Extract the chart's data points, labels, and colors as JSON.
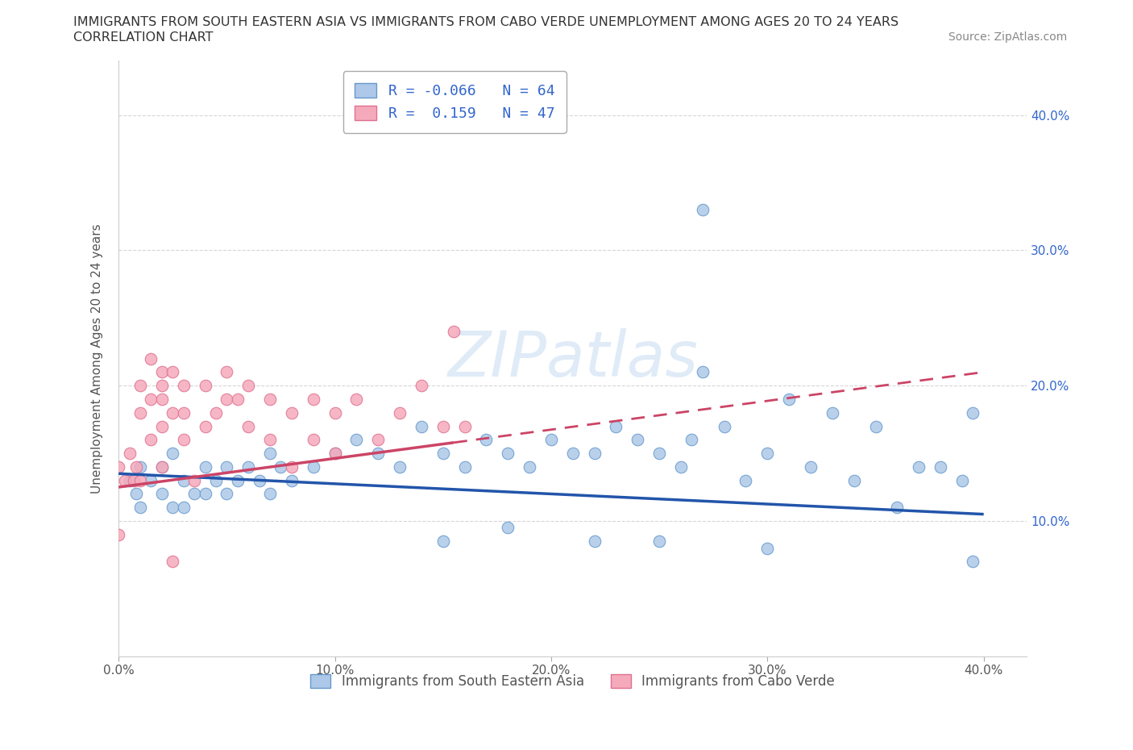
{
  "title_line1": "IMMIGRANTS FROM SOUTH EASTERN ASIA VS IMMIGRANTS FROM CABO VERDE UNEMPLOYMENT AMONG AGES 20 TO 24 YEARS",
  "title_line2": "CORRELATION CHART",
  "source_text": "Source: ZipAtlas.com",
  "ylabel": "Unemployment Among Ages 20 to 24 years",
  "xlim": [
    0.0,
    0.42
  ],
  "ylim": [
    0.0,
    0.44
  ],
  "xticks": [
    0.0,
    0.1,
    0.2,
    0.3,
    0.4
  ],
  "yticks": [
    0.1,
    0.2,
    0.3,
    0.4
  ],
  "ytick_labels": [
    "10.0%",
    "20.0%",
    "30.0%",
    "40.0%"
  ],
  "xtick_labels": [
    "0.0%",
    "10.0%",
    "20.0%",
    "30.0%",
    "40.0%"
  ],
  "watermark": "ZIPatlas",
  "series1_color": "#adc8e8",
  "series1_edge": "#6699cc",
  "series2_color": "#f5aabb",
  "series2_edge": "#e07090",
  "series1_label": "Immigrants from South Eastern Asia",
  "series2_label": "Immigrants from Cabo Verde",
  "R1": -0.066,
  "N1": 64,
  "R2": 0.159,
  "N2": 47,
  "legend_color": "#3366cc",
  "grid_color": "#cccccc",
  "background_color": "#ffffff",
  "reg1_color": "#2255aa",
  "reg2_color": "#cc4466",
  "blue1_x": [
    0.005,
    0.008,
    0.01,
    0.01,
    0.015,
    0.02,
    0.02,
    0.025,
    0.025,
    0.03,
    0.03,
    0.035,
    0.04,
    0.04,
    0.045,
    0.05,
    0.05,
    0.055,
    0.06,
    0.065,
    0.07,
    0.07,
    0.075,
    0.08,
    0.09,
    0.1,
    0.11,
    0.12,
    0.13,
    0.14,
    0.15,
    0.16,
    0.17,
    0.18,
    0.19,
    0.2,
    0.21,
    0.22,
    0.23,
    0.24,
    0.25,
    0.26,
    0.265,
    0.27,
    0.28,
    0.29,
    0.3,
    0.31,
    0.32,
    0.33,
    0.34,
    0.35,
    0.36,
    0.37,
    0.38,
    0.39,
    0.395,
    0.395,
    0.27,
    0.22,
    0.15,
    0.18,
    0.25,
    0.3
  ],
  "blue1_y": [
    0.13,
    0.12,
    0.14,
    0.11,
    0.13,
    0.14,
    0.12,
    0.15,
    0.11,
    0.13,
    0.11,
    0.12,
    0.14,
    0.12,
    0.13,
    0.14,
    0.12,
    0.13,
    0.14,
    0.13,
    0.15,
    0.12,
    0.14,
    0.13,
    0.14,
    0.15,
    0.16,
    0.15,
    0.14,
    0.17,
    0.15,
    0.14,
    0.16,
    0.15,
    0.14,
    0.16,
    0.15,
    0.15,
    0.17,
    0.16,
    0.15,
    0.14,
    0.16,
    0.21,
    0.17,
    0.13,
    0.15,
    0.19,
    0.14,
    0.18,
    0.13,
    0.17,
    0.11,
    0.14,
    0.14,
    0.13,
    0.07,
    0.18,
    0.33,
    0.085,
    0.085,
    0.095,
    0.085,
    0.08
  ],
  "pink2_x": [
    0.0,
    0.0,
    0.003,
    0.005,
    0.007,
    0.008,
    0.01,
    0.01,
    0.01,
    0.015,
    0.015,
    0.02,
    0.02,
    0.02,
    0.02,
    0.025,
    0.025,
    0.03,
    0.03,
    0.03,
    0.035,
    0.04,
    0.04,
    0.045,
    0.05,
    0.05,
    0.06,
    0.06,
    0.07,
    0.07,
    0.08,
    0.08,
    0.09,
    0.09,
    0.1,
    0.1,
    0.11,
    0.12,
    0.13,
    0.14,
    0.15,
    0.155,
    0.16,
    0.055,
    0.015,
    0.02,
    0.025
  ],
  "pink2_y": [
    0.14,
    0.09,
    0.13,
    0.15,
    0.13,
    0.14,
    0.2,
    0.18,
    0.13,
    0.19,
    0.16,
    0.21,
    0.19,
    0.17,
    0.14,
    0.21,
    0.18,
    0.2,
    0.18,
    0.16,
    0.13,
    0.2,
    0.17,
    0.18,
    0.21,
    0.19,
    0.2,
    0.17,
    0.19,
    0.16,
    0.18,
    0.14,
    0.19,
    0.16,
    0.18,
    0.15,
    0.19,
    0.16,
    0.18,
    0.2,
    0.17,
    0.24,
    0.17,
    0.19,
    0.22,
    0.2,
    0.07
  ]
}
